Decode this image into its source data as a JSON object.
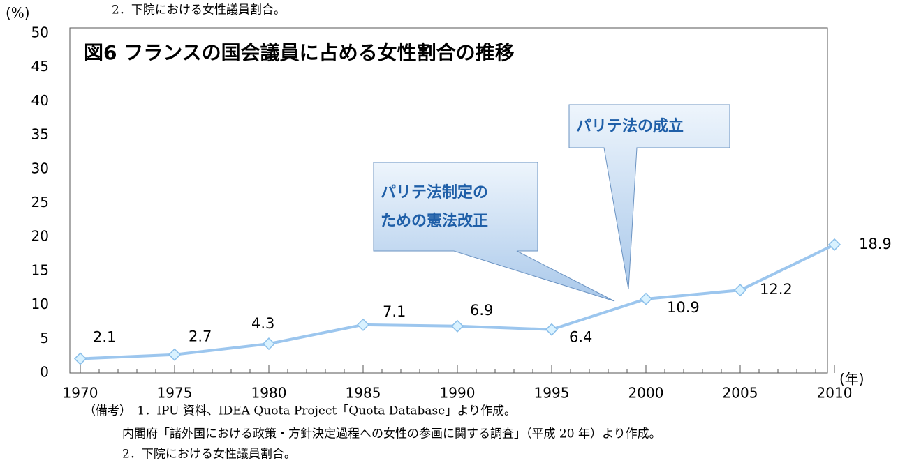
{
  "header": "2．下院における女性議員割合。",
  "chart_data": {
    "type": "line",
    "title": "図6 フランスの国会議員に占める女性割合の推移",
    "y_label": "(%)",
    "x_label": "(年)",
    "x": [
      1970,
      1975,
      1980,
      1985,
      1990,
      1995,
      2000,
      2005,
      2010
    ],
    "series": [
      {
        "name": "女性割合",
        "color": "#9cc6ee",
        "values": [
          2.1,
          2.7,
          4.3,
          7.1,
          6.9,
          6.4,
          10.9,
          12.2,
          18.9
        ]
      }
    ],
    "xlim": [
      1970,
      2010
    ],
    "xticks": [
      1970,
      1975,
      1980,
      1985,
      1990,
      1995,
      2000,
      2005,
      2010
    ],
    "ylim": [
      0,
      50
    ],
    "yticks": [
      0,
      5,
      10,
      15,
      20,
      25,
      30,
      35,
      40,
      45,
      50
    ],
    "annotations": [
      {
        "lines": [
          "パリテ法の成立"
        ]
      },
      {
        "lines": [
          "パリテ法制定の",
          "ための憲法改正"
        ]
      }
    ]
  },
  "notes": [
    "（備考）　1．IPU 資料、IDEA Quota Project「Quota Database」より作成。",
    "内閣府「諸外国における政策・方針決定過程への女性の参画に関する調査」（平成 20 年）より作成。",
    "2．下院における女性議員割合。"
  ]
}
